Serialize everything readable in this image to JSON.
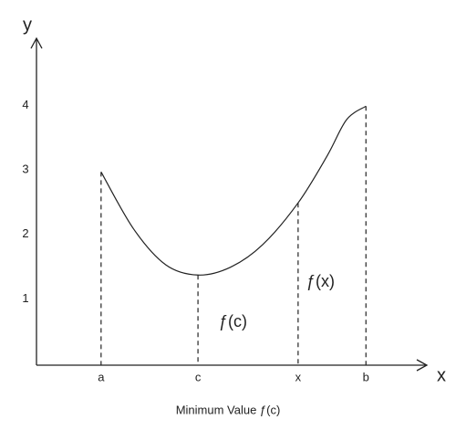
{
  "chart_data": {
    "type": "line",
    "x_label": "x",
    "y_label": "y",
    "caption": "Minimum Value ƒ(c)",
    "annotations": [
      "ƒ(c)",
      "ƒ(x)"
    ],
    "x": [
      1,
      1.5,
      2,
      2.5,
      3,
      3.5,
      4.05,
      4.5,
      4.8,
      5.1
    ],
    "series": [
      {
        "color": "#222222",
        "values": [
          2.97,
          2.09,
          1.53,
          1.37,
          1.49,
          1.84,
          2.49,
          3.22,
          3.78,
          3.99
        ]
      }
    ],
    "xlim": [
      0,
      6
    ],
    "ylim": [
      0,
      5
    ],
    "xticks": [
      {
        "value": 1,
        "label": "a"
      },
      {
        "value": 2.5,
        "label": "c"
      },
      {
        "value": 4.05,
        "label": "x"
      },
      {
        "value": 5.1,
        "label": "b"
      }
    ],
    "yticks": [
      1,
      2,
      3,
      4
    ],
    "grid": false
  }
}
